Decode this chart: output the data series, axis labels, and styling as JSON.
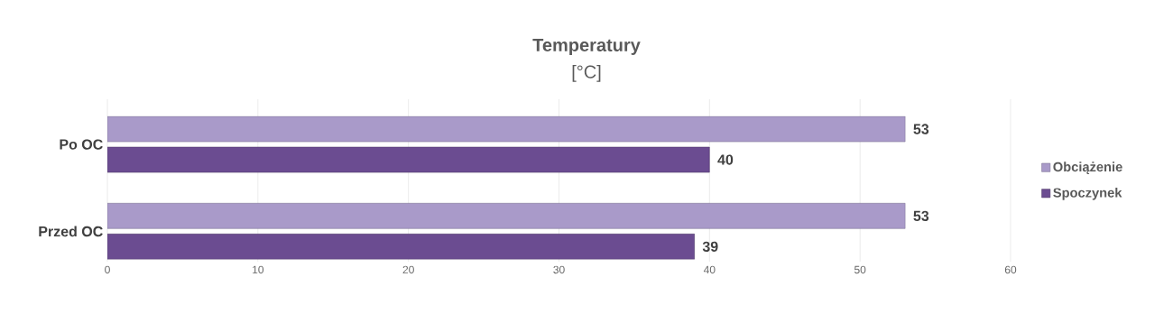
{
  "chart_data": {
    "type": "bar",
    "orientation": "horizontal",
    "title": "Temperatury",
    "subtitle": "[°C]",
    "categories": [
      "Po OC",
      "Przed OC"
    ],
    "series": [
      {
        "name": "Obciążenie",
        "color": "#a99ac9",
        "values": [
          53,
          53
        ]
      },
      {
        "name": "Spoczynek",
        "color": "#6b4c91",
        "values": [
          40,
          39
        ]
      }
    ],
    "xlim": [
      0,
      60
    ],
    "xticks": [
      0,
      10,
      20,
      30,
      40,
      50,
      60
    ],
    "grid": "x",
    "legend": "right",
    "data_labels": true
  }
}
